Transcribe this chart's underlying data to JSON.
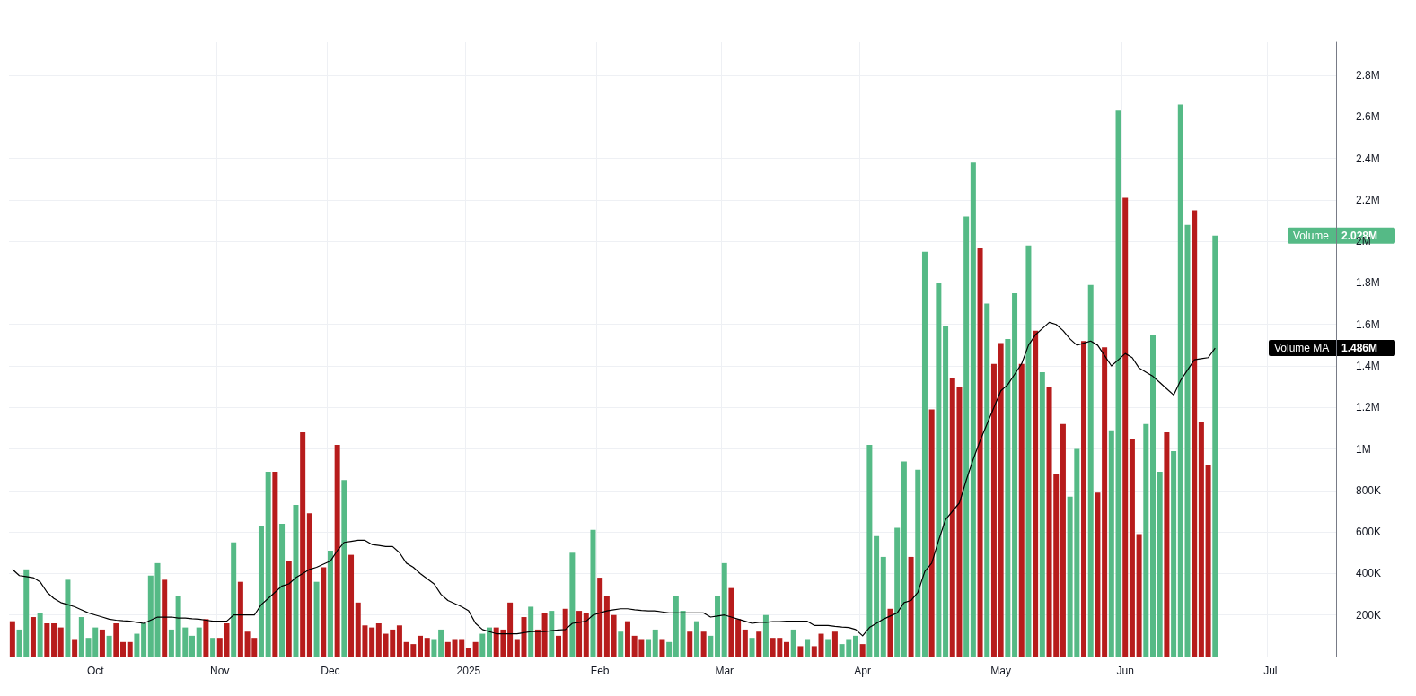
{
  "chart_data": {
    "type": "bar",
    "grid": true,
    "marker": "none",
    "categories": [
      null,
      null,
      null,
      null,
      null,
      null,
      null,
      null,
      null,
      null,
      null,
      null,
      "Oct",
      null,
      null,
      null,
      null,
      null,
      null,
      null,
      null,
      null,
      null,
      null,
      null,
      null,
      null,
      null,
      null,
      null,
      "Nov",
      null,
      null,
      null,
      null,
      null,
      null,
      null,
      null,
      null,
      null,
      null,
      null,
      null,
      null,
      null,
      "Dec",
      null,
      null,
      null,
      null,
      null,
      null,
      null,
      null,
      null,
      null,
      null,
      null,
      null,
      null,
      null,
      null,
      null,
      null,
      null,
      "2025",
      null,
      null,
      null,
      null,
      null,
      null,
      null,
      null,
      null,
      null,
      null,
      null,
      null,
      null,
      null,
      null,
      null,
      null,
      "Feb",
      null,
      null,
      null,
      null,
      null,
      null,
      null,
      null,
      null,
      null,
      null,
      null,
      null,
      null,
      null,
      null,
      null,
      "Mar",
      null,
      null,
      null,
      null,
      null,
      null,
      null,
      null,
      null,
      null,
      null,
      null,
      null,
      null,
      null,
      null,
      null,
      null,
      null,
      "Apr",
      null,
      null,
      null,
      null,
      null,
      null,
      null,
      null,
      null,
      null,
      null,
      null,
      null,
      null,
      null,
      null,
      null,
      null,
      null,
      "May",
      null,
      null,
      null,
      null,
      null,
      null,
      null,
      null,
      null,
      null,
      null,
      null,
      null,
      null,
      null,
      null,
      null,
      "Jun",
      null,
      null,
      null,
      null,
      null,
      null,
      null,
      null,
      null,
      null,
      null,
      null,
      null,
      null,
      null,
      null,
      null,
      null,
      null,
      null,
      "Jul",
      null,
      null,
      null,
      null,
      null,
      null,
      null,
      null,
      null
    ],
    "ylim": [
      0,
      2960000
    ],
    "yticks": [
      {
        "value": 200000,
        "label": "200K"
      },
      {
        "value": 400000,
        "label": "400K"
      },
      {
        "value": 600000,
        "label": "600K"
      },
      {
        "value": 800000,
        "label": "800K"
      },
      {
        "value": 1000000,
        "label": "1M"
      },
      {
        "value": 1200000,
        "label": "1.2M"
      },
      {
        "value": 1400000,
        "label": "1.4M"
      },
      {
        "value": 1600000,
        "label": "1.6M"
      },
      {
        "value": 1800000,
        "label": "1.8M"
      },
      {
        "value": 2000000,
        "label": "2M"
      },
      {
        "value": 2200000,
        "label": "2.2M"
      },
      {
        "value": 2400000,
        "label": "2.4M"
      },
      {
        "value": 2600000,
        "label": "2.6M"
      },
      {
        "value": 2800000,
        "label": "2.8M"
      }
    ],
    "series": [
      {
        "name": "Volume",
        "values": [
          170000,
          130000,
          420000,
          190000,
          210000,
          160000,
          160000,
          140000,
          370000,
          80000,
          190000,
          90000,
          140000,
          130000,
          100000,
          160000,
          70000,
          70000,
          110000,
          160000,
          390000,
          450000,
          370000,
          130000,
          290000,
          140000,
          100000,
          140000,
          180000,
          90000,
          90000,
          160000,
          550000,
          360000,
          120000,
          90000,
          630000,
          890000,
          890000,
          640000,
          460000,
          730000,
          1080000,
          690000,
          360000,
          430000,
          510000,
          1020000,
          850000,
          490000,
          260000,
          150000,
          140000,
          160000,
          110000,
          130000,
          150000,
          70000,
          60000,
          100000,
          90000,
          80000,
          130000,
          70000,
          80000,
          80000,
          40000,
          70000,
          110000,
          140000,
          140000,
          130000,
          260000,
          80000,
          190000,
          240000,
          130000,
          210000,
          220000,
          100000,
          230000,
          500000,
          220000,
          210000,
          610000,
          380000,
          290000,
          200000,
          120000,
          170000,
          100000,
          80000,
          80000,
          130000,
          80000,
          70000,
          290000,
          220000,
          120000,
          170000,
          120000,
          100000,
          290000,
          450000,
          330000,
          180000,
          130000,
          90000,
          120000,
          200000,
          90000,
          90000,
          70000,
          130000,
          50000,
          80000,
          50000,
          110000,
          80000,
          120000,
          60000,
          80000,
          100000,
          60000,
          1020000,
          580000,
          480000,
          230000,
          620000,
          940000,
          480000,
          900000,
          1950000,
          1190000,
          1800000,
          1590000,
          1340000,
          1300000,
          2120000,
          2380000,
          1970000,
          1700000,
          1410000,
          1510000,
          1530000,
          1750000,
          1410000,
          1980000,
          1570000,
          1370000,
          1300000,
          880000,
          1120000,
          770000,
          1000000,
          1520000,
          1790000,
          790000,
          1490000,
          1090000,
          2630000,
          2210000,
          1050000,
          590000,
          1120000,
          1550000,
          890000,
          1080000,
          990000,
          2660000,
          2080000,
          2150000,
          1130000,
          920000,
          2028000,
          null,
          null,
          null,
          null,
          null,
          null,
          null,
          null,
          null,
          null,
          null,
          null,
          null,
          null,
          null,
          null,
          null
        ],
        "colors": [
          "#b71c1c",
          "#55ba86",
          "#55ba86",
          "#b71c1c",
          "#55ba86",
          "#b71c1c",
          "#b71c1c",
          "#b71c1c",
          "#55ba86",
          "#b71c1c",
          "#55ba86",
          "#55ba86",
          "#55ba86",
          "#b71c1c",
          "#55ba86",
          "#b71c1c",
          "#b71c1c",
          "#b71c1c",
          "#55ba86",
          "#55ba86",
          "#55ba86",
          "#55ba86",
          "#b71c1c",
          "#55ba86",
          "#55ba86",
          "#55ba86",
          "#55ba86",
          "#55ba86",
          "#b71c1c",
          "#55ba86",
          "#b71c1c",
          "#b71c1c",
          "#55ba86",
          "#b71c1c",
          "#b71c1c",
          "#b71c1c",
          "#55ba86",
          "#55ba86",
          "#b71c1c",
          "#55ba86",
          "#b71c1c",
          "#55ba86",
          "#b71c1c",
          "#b71c1c",
          "#55ba86",
          "#b71c1c",
          "#55ba86",
          "#b71c1c",
          "#55ba86",
          "#b71c1c",
          "#b71c1c",
          "#b71c1c",
          "#b71c1c",
          "#b71c1c",
          "#b71c1c",
          "#b71c1c",
          "#b71c1c",
          "#b71c1c",
          "#b71c1c",
          "#b71c1c",
          "#b71c1c",
          "#55ba86",
          "#55ba86",
          "#b71c1c",
          "#b71c1c",
          "#b71c1c",
          "#b71c1c",
          "#b71c1c",
          "#55ba86",
          "#55ba86",
          "#b71c1c",
          "#b71c1c",
          "#b71c1c",
          "#b71c1c",
          "#b71c1c",
          "#55ba86",
          "#b71c1c",
          "#b71c1c",
          "#55ba86",
          "#b71c1c",
          "#b71c1c",
          "#55ba86",
          "#b71c1c",
          "#b71c1c",
          "#55ba86",
          "#b71c1c",
          "#b71c1c",
          "#b71c1c",
          "#55ba86",
          "#b71c1c",
          "#b71c1c",
          "#b71c1c",
          "#55ba86",
          "#55ba86",
          "#b71c1c",
          "#55ba86",
          "#55ba86",
          "#55ba86",
          "#b71c1c",
          "#55ba86",
          "#b71c1c",
          "#55ba86",
          "#55ba86",
          "#55ba86",
          "#b71c1c",
          "#b71c1c",
          "#b71c1c",
          "#55ba86",
          "#b71c1c",
          "#55ba86",
          "#b71c1c",
          "#b71c1c",
          "#b71c1c",
          "#55ba86",
          "#b71c1c",
          "#55ba86",
          "#b71c1c",
          "#b71c1c",
          "#55ba86",
          "#b71c1c",
          "#55ba86",
          "#55ba86",
          "#55ba86",
          "#b71c1c",
          "#55ba86",
          "#55ba86",
          "#55ba86",
          "#b71c1c",
          "#55ba86",
          "#55ba86",
          "#b71c1c",
          "#55ba86",
          "#55ba86",
          "#b71c1c",
          "#55ba86",
          "#55ba86",
          "#b71c1c",
          "#b71c1c",
          "#55ba86",
          "#55ba86",
          "#b71c1c",
          "#55ba86",
          "#b71c1c",
          "#b71c1c",
          "#55ba86",
          "#55ba86",
          "#b71c1c",
          "#55ba86",
          "#b71c1c",
          "#55ba86",
          "#b71c1c",
          "#b71c1c",
          "#b71c1c",
          "#55ba86",
          "#55ba86",
          "#b71c1c",
          "#55ba86",
          "#b71c1c",
          "#b71c1c",
          "#55ba86",
          "#55ba86",
          "#b71c1c",
          "#b71c1c",
          "#b71c1c",
          "#55ba86",
          "#55ba86",
          "#55ba86",
          "#b71c1c",
          "#55ba86",
          "#55ba86",
          "#55ba86",
          "#b71c1c",
          "#b71c1c",
          "#b71c1c",
          "#55ba86",
          null,
          null,
          null,
          null,
          null,
          null,
          null,
          null,
          null,
          null,
          null,
          null,
          null,
          null,
          null,
          null,
          null
        ]
      },
      {
        "name": "Volume MA",
        "type": "line",
        "color": "#000000",
        "values": [
          420000,
          390000,
          385000,
          380000,
          360000,
          310000,
          280000,
          260000,
          250000,
          240000,
          225000,
          210000,
          200000,
          190000,
          180000,
          175000,
          172000,
          170000,
          165000,
          160000,
          175000,
          190000,
          190000,
          190000,
          185000,
          185000,
          182000,
          180000,
          175000,
          170000,
          170000,
          170000,
          200000,
          200000,
          200000,
          200000,
          250000,
          280000,
          310000,
          340000,
          350000,
          380000,
          400000,
          420000,
          430000,
          445000,
          460000,
          510000,
          550000,
          555000,
          560000,
          560000,
          540000,
          535000,
          530000,
          530000,
          500000,
          450000,
          430000,
          400000,
          375000,
          350000,
          300000,
          270000,
          255000,
          240000,
          220000,
          160000,
          130000,
          120000,
          110000,
          110000,
          110000,
          110000,
          115000,
          120000,
          120000,
          120000,
          125000,
          128000,
          130000,
          160000,
          165000,
          170000,
          200000,
          210000,
          220000,
          225000,
          230000,
          230000,
          225000,
          222000,
          220000,
          220000,
          215000,
          210000,
          210000,
          210000,
          210000,
          210000,
          210000,
          190000,
          195000,
          200000,
          190000,
          180000,
          170000,
          160000,
          165000,
          165000,
          168000,
          168000,
          170000,
          170000,
          170000,
          170000,
          150000,
          150000,
          150000,
          145000,
          142000,
          140000,
          130000,
          100000,
          140000,
          160000,
          180000,
          195000,
          210000,
          260000,
          270000,
          310000,
          410000,
          450000,
          560000,
          660000,
          700000,
          740000,
          850000,
          950000,
          1040000,
          1120000,
          1200000,
          1280000,
          1310000,
          1360000,
          1410000,
          1500000,
          1550000,
          1580000,
          1610000,
          1600000,
          1570000,
          1530000,
          1500000,
          1510000,
          1520000,
          1500000,
          1450000,
          1400000,
          1430000,
          1460000,
          1440000,
          1390000,
          1370000,
          1350000,
          1320000,
          1290000,
          1260000,
          1330000,
          1380000,
          1430000,
          1435000,
          1440000,
          1486000,
          null,
          null,
          null,
          null,
          null,
          null,
          null,
          null,
          null,
          null,
          null,
          null,
          null,
          null,
          null,
          null,
          null
        ]
      }
    ],
    "annotations": [
      "2.028M",
      "1.486M"
    ]
  }
}
